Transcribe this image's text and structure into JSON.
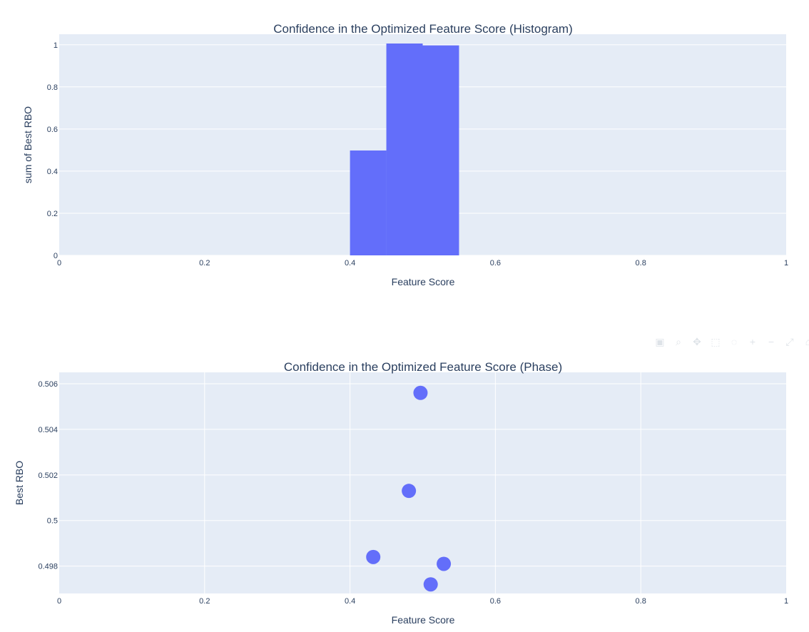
{
  "toolbar": {
    "icons": [
      "camera-icon",
      "zoom-icon",
      "pan-icon",
      "box-select-icon",
      "lasso-icon",
      "zoom-in-icon",
      "zoom-out-icon",
      "autoscale-icon",
      "reset-axes-icon"
    ],
    "glyphs": [
      "▣",
      "⌕",
      "✥",
      "⬚",
      "◌",
      "+",
      "−",
      "⤢",
      "⌂"
    ]
  },
  "colors": {
    "plot_bg": "#e5ecf6",
    "grid": "#ffffff",
    "marker": "#636efa",
    "text": "#2a3f5f"
  },
  "chart_data": [
    {
      "type": "bar",
      "title": "Confidence in the Optimized Feature Score (Histogram)",
      "xlabel": "Feature Score",
      "ylabel": "sum of Best RBO",
      "xlim": [
        0,
        1
      ],
      "ylim": [
        0,
        1.05
      ],
      "xticks": [
        0,
        0.2,
        0.4,
        0.6,
        0.8,
        1
      ],
      "xtick_labels": [
        "0",
        "0.2",
        "0.4",
        "0.6",
        "0.8",
        "1"
      ],
      "yticks": [
        0,
        0.2,
        0.4,
        0.6,
        0.8,
        1
      ],
      "ytick_labels": [
        "0",
        "0.2",
        "0.4",
        "0.6",
        "0.8",
        "1"
      ],
      "grid": true,
      "bins": [
        {
          "x0": 0.4,
          "x1": 0.45,
          "value": 0.498
        },
        {
          "x0": 0.45,
          "x1": 0.5,
          "value": 1.006
        },
        {
          "x0": 0.5,
          "x1": 0.55,
          "value": 0.997
        }
      ]
    },
    {
      "type": "scatter",
      "title": "Confidence in the Optimized Feature Score (Phase)",
      "xlabel": "Feature Score",
      "ylabel": "Best RBO",
      "xlim": [
        0,
        1
      ],
      "ylim": [
        0.4968,
        0.5065
      ],
      "xticks": [
        0,
        0.2,
        0.4,
        0.6,
        0.8,
        1
      ],
      "xtick_labels": [
        "0",
        "0.2",
        "0.4",
        "0.6",
        "0.8",
        "1"
      ],
      "yticks": [
        0.498,
        0.5,
        0.502,
        0.504,
        0.506
      ],
      "ytick_labels": [
        "0.498",
        "0.5",
        "0.502",
        "0.504",
        "0.506"
      ],
      "grid": true,
      "points": [
        {
          "x": 0.497,
          "y": 0.5056
        },
        {
          "x": 0.481,
          "y": 0.5013
        },
        {
          "x": 0.432,
          "y": 0.4984
        },
        {
          "x": 0.529,
          "y": 0.4981
        },
        {
          "x": 0.511,
          "y": 0.4972
        }
      ]
    }
  ]
}
